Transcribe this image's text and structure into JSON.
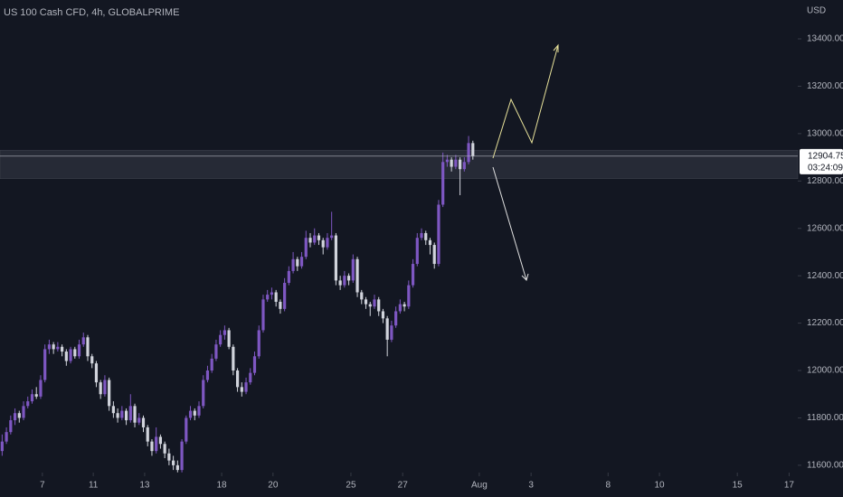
{
  "chart_data": {
    "type": "candlestick",
    "title": "US 100 Cash CFD, 4h, GLOBALPRIME",
    "currency": "USD",
    "up_color": "#7e57c2",
    "down_color": "#d1d4dc",
    "ylim": [
      11569,
      13564
    ],
    "xlim": [
      -0.5,
      185.5
    ],
    "yticks": [
      {
        "value": 11600,
        "label": "11600.00"
      },
      {
        "value": 11800,
        "label": "11800.00"
      },
      {
        "value": 12000,
        "label": "12000.00"
      },
      {
        "value": 12200,
        "label": "12200.00"
      },
      {
        "value": 12400,
        "label": "12400.00"
      },
      {
        "value": 12600,
        "label": "12600.00"
      },
      {
        "value": 12800,
        "label": "12800.00"
      },
      {
        "value": 13000,
        "label": "13000.00"
      },
      {
        "value": 13200,
        "label": "13200.00"
      },
      {
        "value": 13400,
        "label": "13400.00"
      }
    ],
    "xticks": [
      {
        "value": 9.4,
        "label": "7"
      },
      {
        "value": 21.3,
        "label": "11"
      },
      {
        "value": 33.3,
        "label": "13"
      },
      {
        "value": 51.3,
        "label": "18"
      },
      {
        "value": 63.3,
        "label": "20"
      },
      {
        "value": 81.5,
        "label": "25"
      },
      {
        "value": 93.6,
        "label": "27"
      },
      {
        "value": 111.5,
        "label": "Aug"
      },
      {
        "value": 123.6,
        "label": "3"
      },
      {
        "value": 141.6,
        "label": "8"
      },
      {
        "value": 153.6,
        "label": "10"
      },
      {
        "value": 171.8,
        "label": "15"
      },
      {
        "value": 183.9,
        "label": "17"
      }
    ],
    "zone": [
      12810,
      12930
    ],
    "last_price": {
      "value": 12904.75,
      "label": "12904.75",
      "countdown": "03:24:09"
    },
    "ohlc": [
      [
        11660,
        11730,
        11640,
        11700
      ],
      [
        11700,
        11760,
        11690,
        11740
      ],
      [
        11740,
        11810,
        11730,
        11790
      ],
      [
        11790,
        11840,
        11770,
        11820
      ],
      [
        11820,
        11830,
        11780,
        11800
      ],
      [
        11800,
        11870,
        11790,
        11850
      ],
      [
        11850,
        11890,
        11840,
        11870
      ],
      [
        11870,
        11920,
        11860,
        11900
      ],
      [
        11900,
        11930,
        11880,
        11890
      ],
      [
        11890,
        11980,
        11880,
        11960
      ],
      [
        11960,
        12110,
        11950,
        12090
      ],
      [
        12090,
        12130,
        12070,
        12110
      ],
      [
        12110,
        12120,
        12070,
        12090
      ],
      [
        12090,
        12120,
        12080,
        12100
      ],
      [
        12100,
        12110,
        12060,
        12080
      ],
      [
        12080,
        12090,
        12020,
        12040
      ],
      [
        12040,
        12100,
        12030,
        12090
      ],
      [
        12090,
        12100,
        12050,
        12060
      ],
      [
        12060,
        12130,
        12050,
        12110
      ],
      [
        12110,
        12160,
        12100,
        12140
      ],
      [
        12140,
        12150,
        12040,
        12060
      ],
      [
        12060,
        12070,
        12010,
        12030
      ],
      [
        12030,
        12040,
        11930,
        11950
      ],
      [
        11950,
        11960,
        11880,
        11900
      ],
      [
        11900,
        11980,
        11890,
        11960
      ],
      [
        11960,
        11970,
        11830,
        11850
      ],
      [
        11850,
        11870,
        11800,
        11820
      ],
      [
        11820,
        11840,
        11780,
        11800
      ],
      [
        11800,
        11850,
        11790,
        11830
      ],
      [
        11830,
        11840,
        11770,
        11790
      ],
      [
        11790,
        11900,
        11780,
        11850
      ],
      [
        11850,
        11860,
        11760,
        11780
      ],
      [
        11780,
        11820,
        11770,
        11800
      ],
      [
        11800,
        11810,
        11740,
        11760
      ],
      [
        11760,
        11770,
        11680,
        11700
      ],
      [
        11700,
        11710,
        11640,
        11660
      ],
      [
        11660,
        11760,
        11650,
        11720
      ],
      [
        11720,
        11730,
        11670,
        11690
      ],
      [
        11690,
        11700,
        11630,
        11650
      ],
      [
        11650,
        11670,
        11600,
        11620
      ],
      [
        11620,
        11640,
        11580,
        11600
      ],
      [
        11600,
        11620,
        11570,
        11580
      ],
      [
        11580,
        11710,
        11570,
        11700
      ],
      [
        11700,
        11810,
        11690,
        11800
      ],
      [
        11800,
        11850,
        11790,
        11830
      ],
      [
        11830,
        11840,
        11790,
        11810
      ],
      [
        11810,
        11870,
        11800,
        11850
      ],
      [
        11850,
        11980,
        11840,
        11960
      ],
      [
        11960,
        12020,
        11950,
        12000
      ],
      [
        12000,
        12070,
        11990,
        12050
      ],
      [
        12050,
        12130,
        12040,
        12110
      ],
      [
        12110,
        12170,
        12100,
        12150
      ],
      [
        12150,
        12190,
        12130,
        12170
      ],
      [
        12170,
        12180,
        12090,
        12100
      ],
      [
        12100,
        12110,
        11980,
        12000
      ],
      [
        12000,
        12010,
        11910,
        11930
      ],
      [
        11930,
        11950,
        11890,
        11910
      ],
      [
        11910,
        11970,
        11900,
        11950
      ],
      [
        11950,
        12010,
        11940,
        11990
      ],
      [
        11990,
        12080,
        11980,
        12060
      ],
      [
        12060,
        12190,
        12050,
        12170
      ],
      [
        12170,
        12320,
        12160,
        12300
      ],
      [
        12300,
        12340,
        12290,
        12320
      ],
      [
        12320,
        12350,
        12300,
        12330
      ],
      [
        12330,
        12340,
        12270,
        12290
      ],
      [
        12290,
        12300,
        12240,
        12260
      ],
      [
        12260,
        12390,
        12250,
        12370
      ],
      [
        12370,
        12440,
        12360,
        12420
      ],
      [
        12420,
        12500,
        12410,
        12470
      ],
      [
        12470,
        12480,
        12420,
        12440
      ],
      [
        12440,
        12500,
        12430,
        12480
      ],
      [
        12480,
        12590,
        12470,
        12560
      ],
      [
        12560,
        12580,
        12520,
        12540
      ],
      [
        12540,
        12600,
        12530,
        12570
      ],
      [
        12570,
        12580,
        12530,
        12550
      ],
      [
        12550,
        12560,
        12490,
        12520
      ],
      [
        12520,
        12580,
        12510,
        12560
      ],
      [
        12560,
        12670,
        12550,
        12570
      ],
      [
        12570,
        12580,
        12360,
        12380
      ],
      [
        12380,
        12400,
        12340,
        12360
      ],
      [
        12360,
        12420,
        12350,
        12400
      ],
      [
        12400,
        12410,
        12360,
        12380
      ],
      [
        12380,
        12490,
        12370,
        12470
      ],
      [
        12470,
        12480,
        12310,
        12330
      ],
      [
        12330,
        12340,
        12280,
        12300
      ],
      [
        12300,
        12310,
        12260,
        12280
      ],
      [
        12280,
        12290,
        12230,
        12270
      ],
      [
        12270,
        12320,
        12260,
        12300
      ],
      [
        12300,
        12310,
        12230,
        12250
      ],
      [
        12250,
        12260,
        12200,
        12220
      ],
      [
        12220,
        12230,
        12060,
        12130
      ],
      [
        12130,
        12210,
        12120,
        12190
      ],
      [
        12190,
        12270,
        12180,
        12250
      ],
      [
        12250,
        12300,
        12240,
        12280
      ],
      [
        12280,
        12290,
        12250,
        12270
      ],
      [
        12270,
        12380,
        12260,
        12360
      ],
      [
        12360,
        12470,
        12350,
        12450
      ],
      [
        12450,
        12580,
        12440,
        12560
      ],
      [
        12560,
        12600,
        12550,
        12580
      ],
      [
        12580,
        12590,
        12530,
        12550
      ],
      [
        12550,
        12560,
        12490,
        12530
      ],
      [
        12530,
        12540,
        12430,
        12450
      ],
      [
        12450,
        12720,
        12440,
        12700
      ],
      [
        12700,
        12920,
        12690,
        12880
      ],
      [
        12880,
        12910,
        12860,
        12890
      ],
      [
        12890,
        12900,
        12840,
        12860
      ],
      [
        12860,
        12910,
        12850,
        12890
      ],
      [
        12890,
        12900,
        12740,
        12850
      ],
      [
        12850,
        12900,
        12840,
        12880
      ],
      [
        12880,
        12990,
        12870,
        12960
      ],
      [
        12960,
        12970,
        12890,
        12904.75
      ]
    ]
  }
}
